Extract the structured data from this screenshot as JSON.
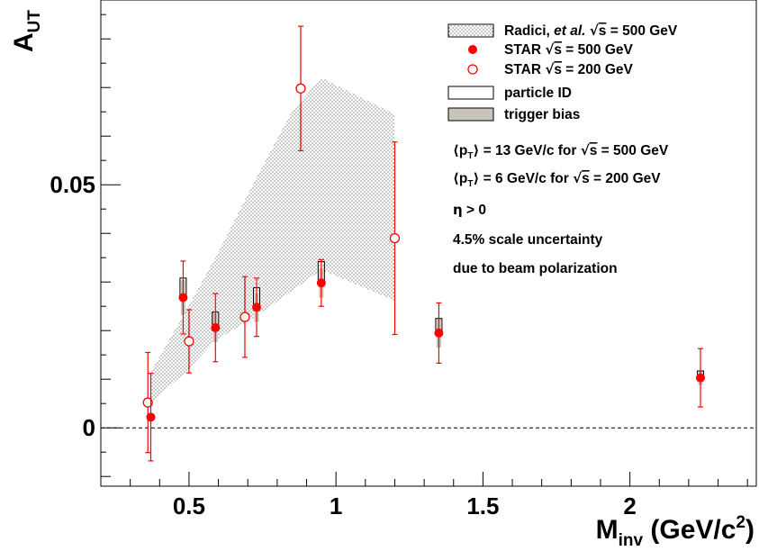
{
  "chart_data": {
    "type": "scatter",
    "title": "",
    "xlabel": {
      "main": "M",
      "sub": "inv",
      "unit": "(GeV/c",
      "sup": "2",
      "close": ")"
    },
    "ylabel": {
      "main": "A",
      "sub": "UT"
    },
    "xlim": [
      0.2,
      2.43
    ],
    "ylim": [
      -0.012,
      0.088
    ],
    "x_ticks": [
      {
        "v": 0.5,
        "label": "0.5"
      },
      {
        "v": 1,
        "label": "1"
      },
      {
        "v": 1.5,
        "label": "1.5"
      },
      {
        "v": 2,
        "label": "2"
      }
    ],
    "y_ticks": [
      {
        "v": 0,
        "label": "0"
      },
      {
        "v": 0.05,
        "label": "0.05"
      }
    ],
    "zero_line": true,
    "legend_position": "top-right",
    "legend": [
      {
        "key": "band",
        "label": "Radici, ",
        "italic": "et al.",
        "sqrt": "s",
        "tail": " = 500 GeV"
      },
      {
        "key": "star500",
        "label": "STAR ",
        "sqrt": "s",
        "tail": " = 500 GeV"
      },
      {
        "key": "star200",
        "label": "STAR ",
        "sqrt": "s",
        "tail": " = 200 GeV"
      },
      {
        "key": "pid",
        "label": "particle ID"
      },
      {
        "key": "trig",
        "label": "trigger bias"
      }
    ],
    "annotations": [
      {
        "pre": "p",
        "sub": "T",
        "mid": " = 13 GeV/c for ",
        "sqrt": "s",
        "tail": " = 500 GeV"
      },
      {
        "pre": "p",
        "sub": "T",
        "mid": " =  6 GeV/c for ",
        "sqrt": "s",
        "tail": " = 200 GeV"
      },
      {
        "eta": "η",
        "text": " > 0"
      },
      {
        "text": "4.5% scale uncertainty"
      },
      {
        "text": "due to beam polarization"
      }
    ],
    "series": [
      {
        "name": "STAR √s = 500 GeV",
        "marker": "filled-circle",
        "color": "#ff0000",
        "points": [
          {
            "x": 0.37,
            "y": 0.0022,
            "err": 0.009
          },
          {
            "x": 0.48,
            "y": 0.0268,
            "err": 0.0075
          },
          {
            "x": 0.59,
            "y": 0.0206,
            "err": 0.007
          },
          {
            "x": 0.73,
            "y": 0.0248,
            "err": 0.006
          },
          {
            "x": 0.95,
            "y": 0.0298,
            "err": 0.0048
          },
          {
            "x": 1.35,
            "y": 0.0195,
            "err": 0.0062
          },
          {
            "x": 2.24,
            "y": 0.0103,
            "err": 0.006
          }
        ],
        "pid_box_top": [
          null,
          0.0308,
          0.0238,
          0.0288,
          0.0342,
          0.0225,
          0.0117
        ],
        "trigger_bias": [
          null,
          0.0036,
          0.003,
          0.003,
          0.003,
          0.003,
          0.0015
        ]
      },
      {
        "name": "STAR √s = 200 GeV",
        "marker": "open-circle",
        "color": "#ff0000",
        "points": [
          {
            "x": 0.36,
            "y": 0.0052,
            "err": 0.0103
          },
          {
            "x": 0.5,
            "y": 0.0178,
            "err": 0.0065
          },
          {
            "x": 0.69,
            "y": 0.0228,
            "err": 0.0083
          },
          {
            "x": 0.88,
            "y": 0.0698,
            "err": 0.0128
          },
          {
            "x": 1.2,
            "y": 0.039,
            "err": 0.0198
          }
        ]
      }
    ],
    "band": {
      "name": "Radici, et al. √s = 500 GeV",
      "upper": [
        [
          0.37,
          0.0115
        ],
        [
          0.48,
          0.023
        ],
        [
          0.59,
          0.035
        ],
        [
          0.73,
          0.0515
        ],
        [
          0.85,
          0.065
        ],
        [
          0.95,
          0.072
        ],
        [
          1.2,
          0.0645
        ]
      ],
      "lower": [
        [
          1.2,
          0.0262
        ],
        [
          0.95,
          0.0325
        ],
        [
          0.73,
          0.023
        ],
        [
          0.59,
          0.018
        ],
        [
          0.48,
          0.011
        ],
        [
          0.37,
          0.0052
        ]
      ]
    }
  }
}
